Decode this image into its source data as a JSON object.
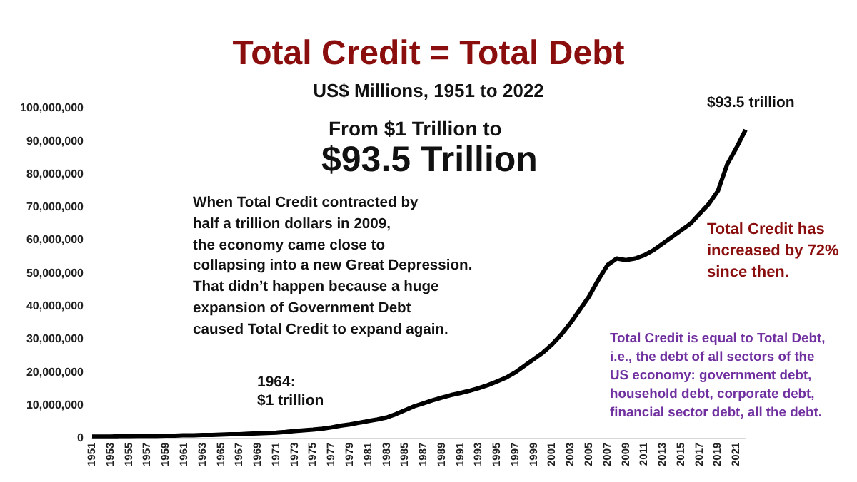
{
  "chart_data": {
    "type": "line",
    "title": "Total Credit = Total Debt",
    "subtitle": "US$ Millions, 1951 to 2022",
    "categories": [
      "1951",
      null,
      "1953",
      null,
      "1955",
      null,
      "1957",
      null,
      "1959",
      null,
      "1961",
      null,
      "1963",
      null,
      "1965",
      null,
      "1967",
      null,
      "1969",
      null,
      "1971",
      null,
      "1973",
      null,
      "1975",
      null,
      "1977",
      null,
      "1979",
      null,
      "1981",
      null,
      "1983",
      null,
      "1985",
      null,
      "1987",
      null,
      "1989",
      null,
      "1991",
      null,
      "1993",
      null,
      "1995",
      null,
      "1997",
      null,
      "1999",
      null,
      "2001",
      null,
      "2003",
      null,
      "2005",
      null,
      "2007",
      null,
      "2009",
      null,
      "2011",
      null,
      "2013",
      null,
      "2015",
      null,
      "2017",
      null,
      "2019",
      null,
      "2021",
      null
    ],
    "series": [
      {
        "color": "#000000",
        "values": [
          500000,
          500000,
          500000,
          600000,
          600000,
          700000,
          700000,
          700000,
          800000,
          800000,
          900000,
          900000,
          1000000,
          1000000,
          1100000,
          1200000,
          1200000,
          1400000,
          1500000,
          1600000,
          1700000,
          1900000,
          2200000,
          2400000,
          2600000,
          2900000,
          3300000,
          3800000,
          4200000,
          4700000,
          5200000,
          5700000,
          6300000,
          7300000,
          8500000,
          9700000,
          10600000,
          11500000,
          12300000,
          13100000,
          13700000,
          14400000,
          15200000,
          16100000,
          17200000,
          18400000,
          20000000,
          22000000,
          24000000,
          26000000,
          28500000,
          31500000,
          35000000,
          39000000,
          43000000,
          48000000,
          52500000,
          54500000,
          54000000,
          54500000,
          55500000,
          57000000,
          59000000,
          61000000,
          63000000,
          65000000,
          68000000,
          71000000,
          75000000,
          83000000,
          88000000,
          93500000
        ]
      }
    ],
    "ylim": [
      0,
      100000000
    ],
    "yticks": [
      0,
      {
        "value": 10000000,
        "label": "10,000,000"
      },
      {
        "value": 20000000,
        "label": "20,000,000"
      },
      {
        "value": 30000000,
        "label": "30,000,000"
      },
      {
        "value": 40000000,
        "label": "40,000,000"
      },
      {
        "value": 50000000,
        "label": "50,000,000"
      },
      {
        "value": 60000000,
        "label": "60,000,000"
      },
      {
        "value": 70000000,
        "label": "70,000,000"
      },
      {
        "value": 80000000,
        "label": "80,000,000"
      },
      {
        "value": 90000000,
        "label": "90,000,000"
      },
      {
        "value": 100000000,
        "label": "100,000,000"
      }
    ],
    "grid": false,
    "legend": false,
    "marker": "none",
    "line_style": "solid",
    "annotations": [
      "From $1 Trillion to",
      "$93.5 Trillion",
      "When Total Credit contracted by\nhalf a trillion dollars in 2009,\nthe economy came close to\ncollapsing into a new Great Depression.\nThat didn’t happen because a huge\nexpansion of Government Debt\ncaused Total Credit to expand again.",
      "Total Credit has\nincreased by 72%\nsince then.",
      "Total Credit is equal to Total Debt,\ni.e., the debt of all sectors of the\nUS economy: government debt,\nhousehold debt, corporate debt,\nfinancial sector debt, all the debt.",
      "1964:\n$1 trillion",
      "$93.5 trillion"
    ]
  }
}
